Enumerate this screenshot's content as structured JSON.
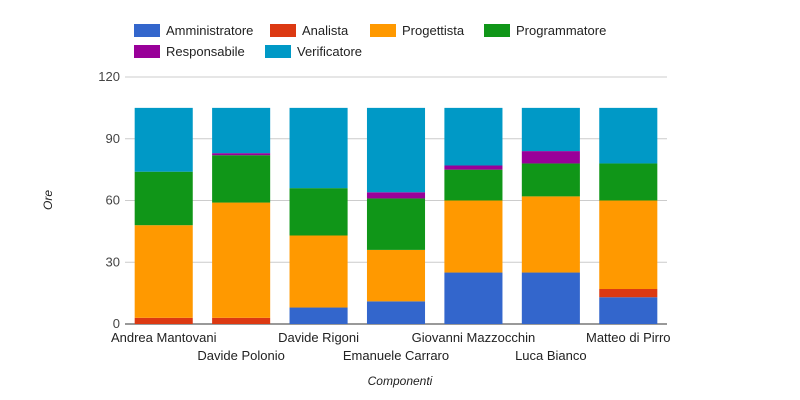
{
  "chart_data": {
    "type": "bar",
    "stacked": true,
    "xlabel": "Componenti",
    "ylabel": "Ore",
    "ylim": [
      0,
      120
    ],
    "yticks": [
      "0",
      "30",
      "60",
      "90",
      "120"
    ],
    "grid": true,
    "legend_position": "top",
    "categories": [
      "Andrea Mantovani",
      "Davide Polonio",
      "Davide Rigoni",
      "Emanuele Carraro",
      "Giovanni Mazzocchin",
      "Luca Bianco",
      "Matteo di Pirro"
    ],
    "series": [
      {
        "name": "Amministratore",
        "color": "#3366cc",
        "values": [
          0,
          0,
          8,
          11,
          25,
          25,
          13
        ]
      },
      {
        "name": "Analista",
        "color": "#dc3912",
        "values": [
          3,
          3,
          0,
          0,
          0,
          0,
          4
        ]
      },
      {
        "name": "Progettista",
        "color": "#ff9900",
        "values": [
          45,
          56,
          35,
          25,
          35,
          37,
          43
        ]
      },
      {
        "name": "Programmatore",
        "color": "#109618",
        "values": [
          26,
          23,
          23,
          25,
          15,
          16,
          18
        ]
      },
      {
        "name": "Responsabile",
        "color": "#990099",
        "values": [
          0,
          1,
          0,
          3,
          2,
          6,
          0
        ]
      },
      {
        "name": "Verificatore",
        "color": "#0099c6",
        "values": [
          31,
          22,
          39,
          41,
          28,
          21,
          27
        ]
      }
    ]
  }
}
